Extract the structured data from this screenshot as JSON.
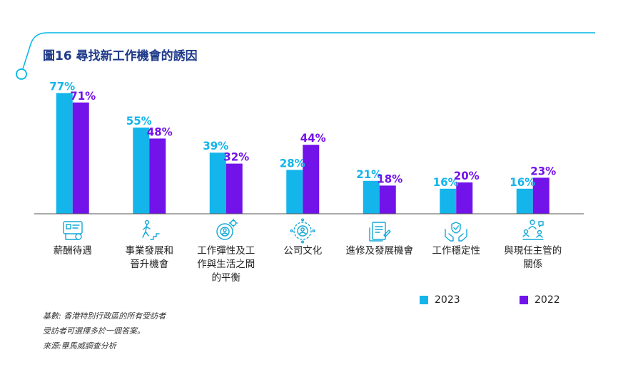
{
  "title": "圖16 尋找新工作機會的誘因",
  "colors": {
    "series2023": "#13b5ea",
    "series2022": "#7213ea",
    "accent": "#00b8e6",
    "title": "#1f3a8a"
  },
  "chart_data": {
    "type": "bar",
    "title": "圖16 尋找新工作機會的誘因",
    "categories": [
      "薪酬待遇",
      "事業發展和晉升機會",
      "工作彈性及工作與生活之間的平衡",
      "公司文化",
      "進修及發展機會",
      "工作穩定性",
      "與現任主管的關係"
    ],
    "category_lines": [
      [
        "薪酬待遇"
      ],
      [
        "事業發展和",
        "晉升機會"
      ],
      [
        "工作彈性及工",
        "作與生活之間",
        "的平衡"
      ],
      [
        "公司文化"
      ],
      [
        "進修及發展機會"
      ],
      [
        "工作穩定性"
      ],
      [
        "與現任主管的",
        "關係"
      ]
    ],
    "icons": [
      "salary-icon",
      "career-stairs-icon",
      "work-life-gear-icon",
      "company-culture-icon",
      "training-document-icon",
      "stability-hands-icon",
      "manager-relationship-icon"
    ],
    "series": [
      {
        "name": "2023",
        "values": [
          77,
          55,
          39,
          28,
          21,
          16,
          16
        ],
        "labels": [
          "77%",
          "55%",
          "39%",
          "28%",
          "21%",
          "16%",
          "16%"
        ]
      },
      {
        "name": "2022",
        "values": [
          71,
          48,
          32,
          44,
          18,
          20,
          23
        ],
        "labels": [
          "71%",
          "48%",
          "32%",
          "44%",
          "18%",
          "20%",
          "23%"
        ]
      }
    ],
    "ylim": [
      0,
      80
    ],
    "legend_position": "bottom-right",
    "grid": false
  },
  "notes": [
    "基數: 香港特別行政區的所有受訪者",
    "受訪者可選擇多於一個答案。",
    "來源:畢馬威調查分析"
  ]
}
